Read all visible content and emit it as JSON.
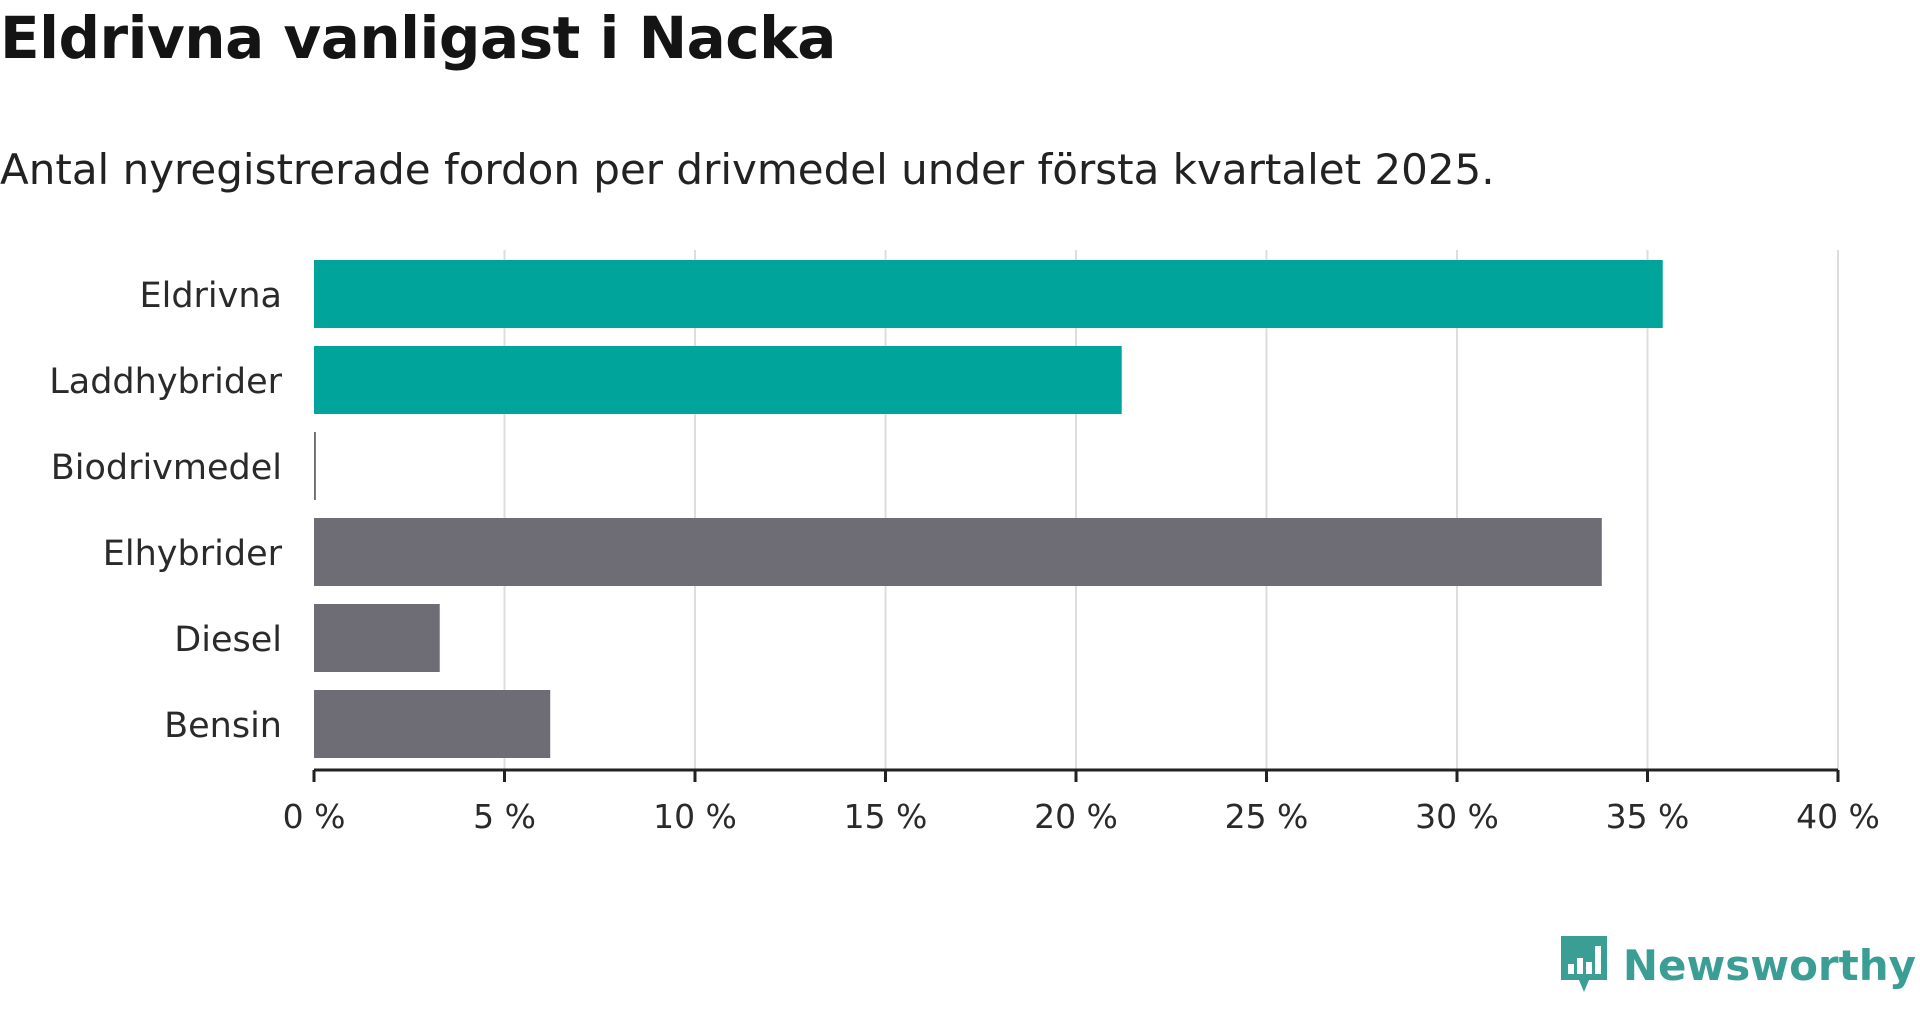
{
  "colors": {
    "highlight": "#00a49a",
    "other": "#6e6d75",
    "grid": "#dddddd",
    "axis": "#222222",
    "brand": "#3b9e95"
  },
  "brand": {
    "name": "Newsworthy",
    "icon": "bar-chart-logo-icon"
  },
  "chart_data": {
    "type": "bar",
    "orientation": "horizontal",
    "title": "Eldrivna vanligast i Nacka",
    "subtitle": "Antal nyregistrerade fordon per drivmedel under första kvartalet 2025.",
    "xlabel": "",
    "ylabel": "",
    "unit": "%",
    "categories": [
      "Eldrivna",
      "Laddhybrider",
      "Biodrivmedel",
      "Elhybrider",
      "Diesel",
      "Bensin"
    ],
    "values": [
      35.4,
      21.2,
      0.05,
      33.8,
      3.3,
      6.2
    ],
    "highlighted": [
      true,
      true,
      false,
      false,
      false,
      false
    ],
    "xlim": [
      0,
      40
    ],
    "xticks": [
      0,
      5,
      10,
      15,
      20,
      25,
      30,
      35,
      40
    ],
    "xtick_labels": [
      "0 %",
      "5 %",
      "10 %",
      "15 %",
      "20 %",
      "25 %",
      "30 %",
      "35 %",
      "40 %"
    ],
    "grid": true,
    "legend": "none"
  }
}
